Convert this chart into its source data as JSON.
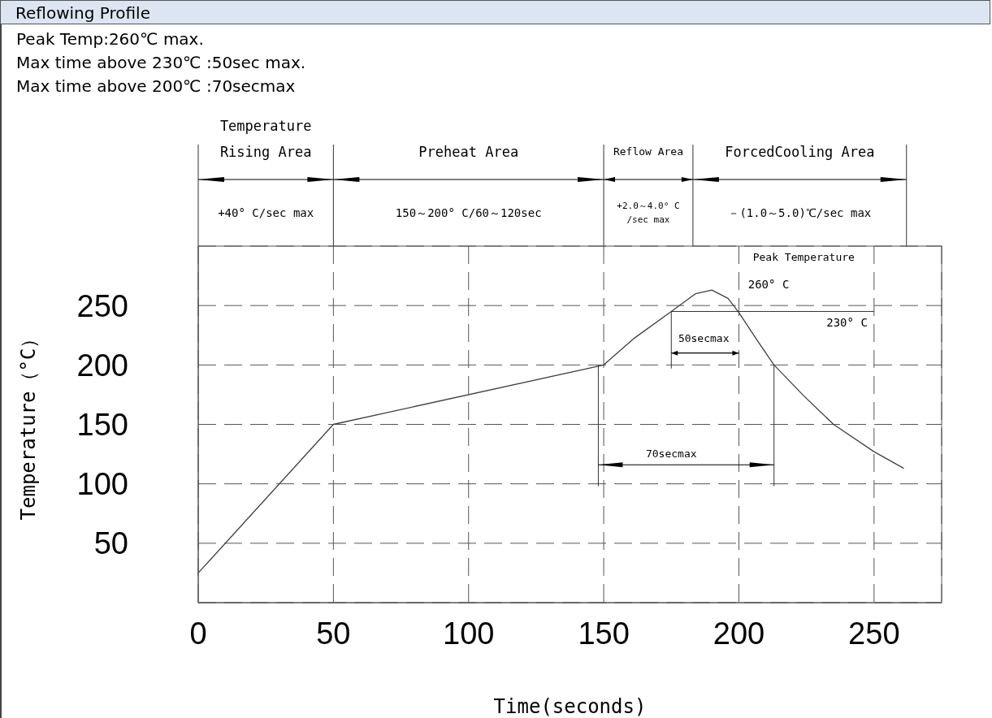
{
  "chart_data": {
    "type": "line",
    "title": "Reflowing Profile",
    "xlabel": "Time(seconds)",
    "ylabel": "Temperature（°C）",
    "x": [
      0,
      50,
      150,
      161,
      175,
      184,
      190,
      196,
      200,
      207,
      213,
      224,
      235,
      250,
      261
    ],
    "series": [
      {
        "color": "#404040",
        "values": [
          25,
          150,
          200,
          222,
          245,
          260,
          263,
          256,
          244,
          220,
          200,
          174,
          150,
          127,
          113
        ]
      }
    ],
    "xlim": [
      0,
      275
    ],
    "xticks": [
      0,
      50,
      100,
      150,
      200,
      250
    ],
    "ylim": [
      0,
      300
    ],
    "yticks": [
      50,
      100,
      150,
      200,
      250
    ],
    "grid": true,
    "marker": "none",
    "line_style": "solid",
    "annotations": [
      "Peak Temp:260℃ max.",
      "Max time above 230℃ :50sec max.",
      "Max time above 200℃ :70secmax",
      "Temperature Rising Area",
      "Preheat Area",
      "Reflow Area",
      "ForcedCooling Area",
      "+40° C/sec max",
      "150～200° C/60～120sec",
      "+2.0～4.0° C /sec max",
      "－(1.0～5.0)℃/sec max",
      "Peak Temperature",
      "260° C",
      "230° C",
      "50secmax",
      "70secmax"
    ]
  }
}
